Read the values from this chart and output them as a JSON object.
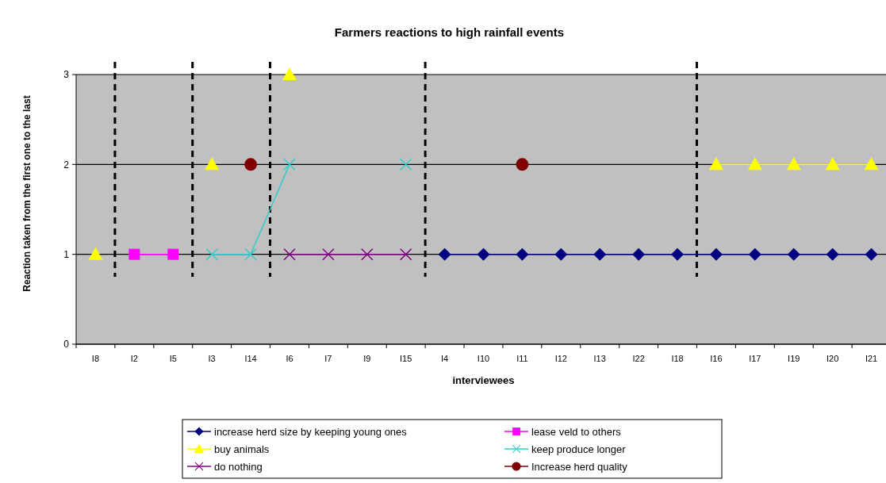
{
  "chart_data": {
    "type": "line",
    "title": "Farmers reactions to high rainfall events",
    "xlabel": "interviewees",
    "ylabel": "Reaction taken from the first one to the last",
    "categories": [
      "I8",
      "I2",
      "I5",
      "I3",
      "I14",
      "I6",
      "I7",
      "I9",
      "I15",
      "I4",
      "I10",
      "I11",
      "I12",
      "I13",
      "I22",
      "I18",
      "I16",
      "I17",
      "I19",
      "I20",
      "I21"
    ],
    "series": [
      {
        "name": "increase herd size by keeping young ones",
        "color": "#000080",
        "marker": "diamond",
        "values": [
          null,
          null,
          null,
          null,
          null,
          null,
          null,
          null,
          null,
          1,
          1,
          1,
          1,
          1,
          1,
          1,
          1,
          1,
          1,
          1,
          1
        ]
      },
      {
        "name": "lease veld to others",
        "color": "#ff00ff",
        "marker": "square",
        "values": [
          null,
          1,
          1,
          null,
          null,
          null,
          null,
          null,
          null,
          null,
          null,
          null,
          null,
          null,
          null,
          null,
          null,
          null,
          null,
          null,
          null
        ]
      },
      {
        "name": "buy animals",
        "color": "#ffff00",
        "marker": "triangle",
        "values": [
          1,
          null,
          null,
          2,
          null,
          3,
          null,
          null,
          null,
          null,
          null,
          null,
          null,
          null,
          null,
          null,
          2,
          2,
          2,
          2,
          2
        ]
      },
      {
        "name": "keep produce longer",
        "color": "#33cccc",
        "marker": "cross",
        "values": [
          null,
          null,
          null,
          1,
          1,
          2,
          null,
          null,
          2,
          null,
          null,
          null,
          null,
          null,
          null,
          null,
          null,
          null,
          null,
          null,
          null
        ]
      },
      {
        "name": "do nothing",
        "color": "#800080",
        "marker": "cross",
        "values": [
          null,
          null,
          null,
          null,
          null,
          1,
          1,
          1,
          1,
          null,
          null,
          null,
          null,
          null,
          null,
          null,
          null,
          null,
          null,
          null,
          null
        ]
      },
      {
        "name": "Increase herd quality",
        "color": "#800000",
        "marker": "circle",
        "values": [
          null,
          null,
          null,
          null,
          2,
          null,
          null,
          null,
          null,
          null,
          null,
          2,
          null,
          null,
          null,
          null,
          null,
          null,
          null,
          null,
          null
        ]
      }
    ],
    "ylim": [
      0,
      3
    ],
    "yticks": [
      0,
      1,
      2,
      3
    ],
    "grid": "y",
    "legend": "bottom",
    "line_style": "solid"
  }
}
